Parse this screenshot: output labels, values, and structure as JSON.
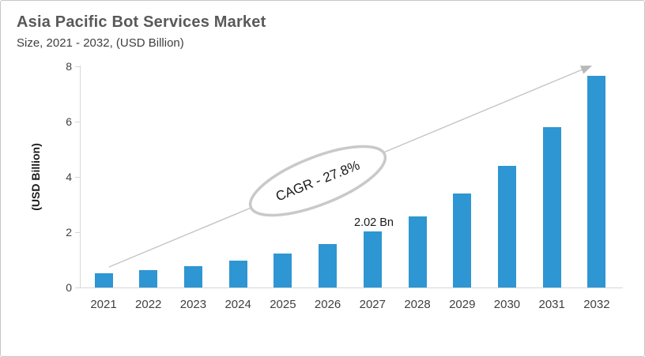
{
  "header": {
    "title": "Asia Pacific Bot Services Market",
    "subtitle": "Size, 2021 - 2032, (USD Billion)"
  },
  "chart_data": {
    "type": "bar",
    "title": "Asia Pacific Bot Services Market",
    "subtitle": "Size, 2021 - 2032, (USD Billion)",
    "categories": [
      "2021",
      "2022",
      "2023",
      "2024",
      "2025",
      "2026",
      "2027",
      "2028",
      "2029",
      "2030",
      "2031",
      "2032"
    ],
    "values": [
      0.52,
      0.63,
      0.78,
      0.98,
      1.24,
      1.58,
      2.02,
      2.58,
      3.4,
      4.4,
      5.8,
      7.66
    ],
    "xlabel": "",
    "ylabel": "(USD Billion)",
    "ylim": [
      0,
      8
    ],
    "yticks": [
      "0",
      "2",
      "4",
      "6",
      "8"
    ],
    "grid": false,
    "legend": "none",
    "bar_color": "#2E96D2",
    "annotations": {
      "cagr": {
        "text": "CAGR - 27.8%"
      },
      "data_label": {
        "category": "2027",
        "text": "2.02 Bn"
      },
      "trend_arrow": "from first bar top to last bar top"
    }
  },
  "colors": {
    "bar": "#2E96D2",
    "axis": "#d6d6d6",
    "arrow": "#c4c4c4",
    "ellipse_stroke": "#c9c9c9",
    "title": "#595959",
    "text": "#404040"
  }
}
